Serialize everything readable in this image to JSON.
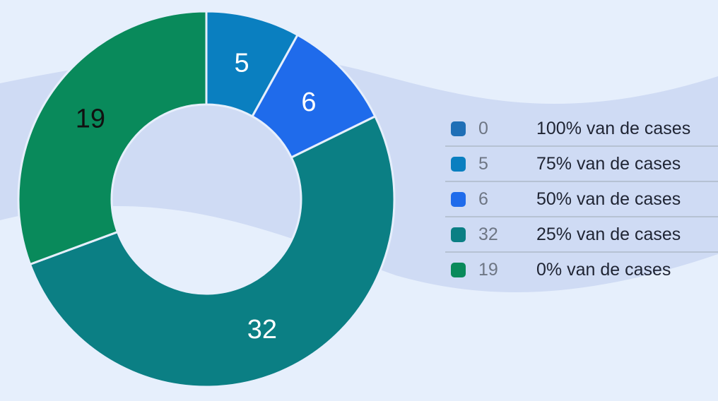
{
  "chart_data": {
    "type": "pie",
    "variant": "donut",
    "legend_position": "right",
    "slices": [
      {
        "label": "100% van de cases",
        "value": 0,
        "color": "#1f6fb6"
      },
      {
        "label": "75% van de cases",
        "value": 5,
        "color": "#0a7fc0"
      },
      {
        "label": "50% van de cases",
        "value": 6,
        "color": "#1f6beb"
      },
      {
        "label": "25% van de cases",
        "value": 32,
        "color": "#0b7f84"
      },
      {
        "label": "0% van de cases",
        "value": 19,
        "color": "#098a5b"
      }
    ],
    "label_colors": [
      "#ffffff",
      "#ffffff",
      "#ffffff",
      "#ffffff",
      "#111111"
    ]
  }
}
